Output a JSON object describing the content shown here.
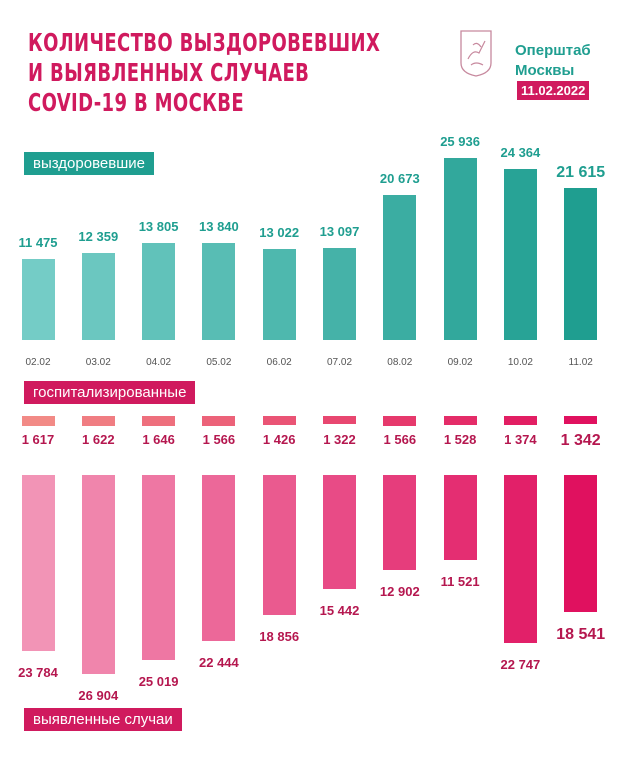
{
  "header": {
    "title_lines": [
      "КОЛИЧЕСТВО ВЫЗДОРОВЕВШИХ",
      "И ВЫЯВЛЕННЫХ СЛУЧАЕВ",
      "COVID-19 В МОСКВЕ"
    ],
    "org_lines": [
      "Оперштаб",
      "Москвы"
    ],
    "date": "11.02.2022",
    "logo": "moscow-coat-of-arms"
  },
  "colors": {
    "title": "#d01a5e",
    "teal": "#1f9e90",
    "teal_light": "#74ccc6",
    "pink": "#e0115f",
    "pink_light": "#f294b6",
    "hosp_light": "#f28a86"
  },
  "chart_data": {
    "type": "bar",
    "categories": [
      "02.02",
      "03.02",
      "04.02",
      "05.02",
      "06.02",
      "07.02",
      "08.02",
      "09.02",
      "10.02",
      "11.02"
    ],
    "series": [
      {
        "name": "выздоровевшие",
        "values": [
          11475,
          12359,
          13805,
          13840,
          13022,
          13097,
          20673,
          25936,
          24364,
          21615
        ]
      },
      {
        "name": "госпитализированные",
        "values": [
          1617,
          1622,
          1646,
          1566,
          1426,
          1322,
          1566,
          1528,
          1374,
          1342
        ]
      },
      {
        "name": "выявленные случаи",
        "values": [
          23784,
          26904,
          25019,
          22444,
          18856,
          15442,
          12902,
          11521,
          22747,
          18541
        ]
      }
    ],
    "grid": false
  }
}
